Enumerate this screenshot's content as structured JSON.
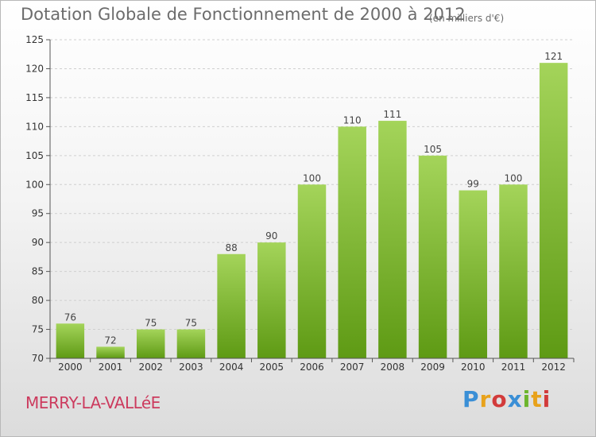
{
  "title": "Dotation Globale de Fonctionnement de 2000 à 2012",
  "unit_note": "(en milliers d'€)",
  "commune": "MERRY-LA-VALLéE",
  "logo": {
    "text": "Proxiti",
    "letter_colors": [
      "#3a8fd6",
      "#e8a21b",
      "#d23b3b",
      "#3a8fd6",
      "#6cb52d",
      "#e8a21b",
      "#d23b3b"
    ]
  },
  "colors": {
    "bar_top": "#a4d45a",
    "bar_bottom": "#5e9a14",
    "grid": "#cfcfcf"
  },
  "chart_data": {
    "type": "bar",
    "title": "Dotation Globale de Fonctionnement de 2000 à 2012",
    "ylabel": "(en milliers d'€)",
    "xlabel": "",
    "categories": [
      "2000",
      "2001",
      "2002",
      "2003",
      "2004",
      "2005",
      "2006",
      "2007",
      "2008",
      "2009",
      "2010",
      "2011",
      "2012"
    ],
    "values": [
      76,
      72,
      75,
      75,
      88,
      90,
      100,
      110,
      111,
      105,
      99,
      100,
      121
    ],
    "ylim": [
      70,
      125
    ],
    "yticks": [
      70,
      75,
      80,
      85,
      90,
      95,
      100,
      105,
      110,
      115,
      120,
      125
    ],
    "grid": true,
    "legend": "none"
  }
}
